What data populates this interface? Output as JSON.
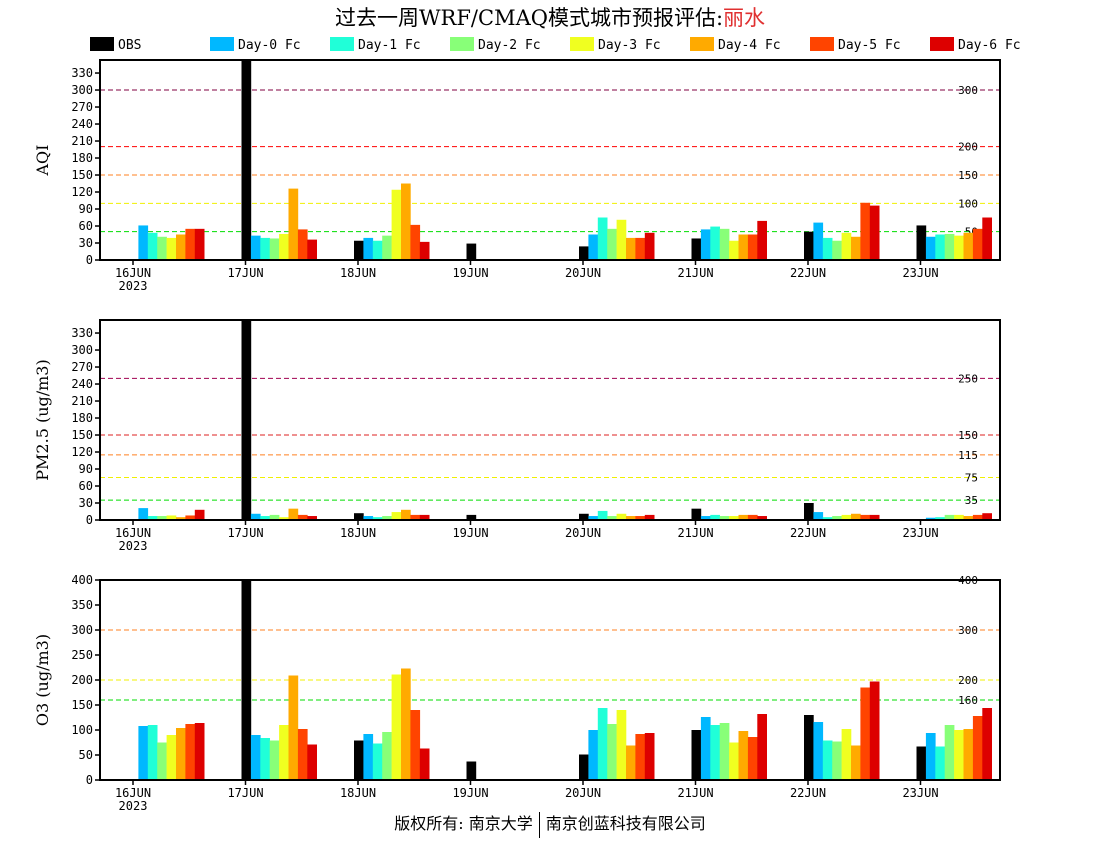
{
  "title": {
    "text": "过去一周WRF/CMAQ模式城市预报评估:",
    "city": "丽水"
  },
  "footer": {
    "left": "版权所有: 南京大学",
    "right": "南京创蓝科技有限公司"
  },
  "legend": [
    {
      "name": "OBS",
      "color": "#000000"
    },
    {
      "name": "Day-0 Fc",
      "color": "#00b8ff"
    },
    {
      "name": "Day-1 Fc",
      "color": "#20ffd8"
    },
    {
      "name": "Day-2 Fc",
      "color": "#88ff78"
    },
    {
      "name": "Day-3 Fc",
      "color": "#f0ff20"
    },
    {
      "name": "Day-4 Fc",
      "color": "#ffaa00"
    },
    {
      "name": "Day-5 Fc",
      "color": "#ff4400"
    },
    {
      "name": "Day-6 Fc",
      "color": "#dd0000"
    }
  ],
  "chart_data": [
    {
      "type": "bar",
      "ylabel": "AQI",
      "ylim": [
        0,
        353
      ],
      "yticks": [
        0,
        30,
        60,
        90,
        120,
        150,
        180,
        210,
        240,
        270,
        300,
        330
      ],
      "categories": [
        "16JUN\n2023",
        "17JUN",
        "18JUN",
        "19JUN",
        "20JUN",
        "21JUN",
        "22JUN",
        "23JUN"
      ],
      "reference_lines": [
        {
          "value": 300,
          "label": "300",
          "color": "#800040"
        },
        {
          "value": 200,
          "label": "200",
          "color": "#ff0000"
        },
        {
          "value": 150,
          "label": "150",
          "color": "#ff8020"
        },
        {
          "value": 100,
          "label": "100",
          "color": "#f0f000"
        },
        {
          "value": 50,
          "label": "50",
          "color": "#00dd00"
        }
      ],
      "series": [
        {
          "name": "OBS",
          "values": [
            null,
            360,
            34,
            29,
            24,
            38,
            50,
            61
          ]
        },
        {
          "name": "Day-0 Fc",
          "values": [
            61,
            43,
            39,
            null,
            45,
            54,
            66,
            41
          ]
        },
        {
          "name": "Day-1 Fc",
          "values": [
            48,
            39,
            34,
            null,
            75,
            59,
            39,
            45
          ]
        },
        {
          "name": "Day-2 Fc",
          "values": [
            41,
            38,
            43,
            null,
            55,
            55,
            34,
            46
          ]
        },
        {
          "name": "Day-3 Fc",
          "values": [
            39,
            46,
            124,
            null,
            71,
            34,
            48,
            43
          ]
        },
        {
          "name": "Day-4 Fc",
          "values": [
            45,
            126,
            135,
            null,
            39,
            45,
            41,
            48
          ]
        },
        {
          "name": "Day-5 Fc",
          "values": [
            55,
            54,
            62,
            null,
            39,
            45,
            101,
            55
          ]
        },
        {
          "name": "Day-6 Fc",
          "values": [
            55,
            36,
            32,
            null,
            48,
            69,
            96,
            75
          ]
        }
      ]
    },
    {
      "type": "bar",
      "ylabel": "PM2.5 (ug/m3)",
      "ylim": [
        0,
        353
      ],
      "yticks": [
        0,
        30,
        60,
        90,
        120,
        150,
        180,
        210,
        240,
        270,
        300,
        330
      ],
      "categories": [
        "16JUN\n2023",
        "17JUN",
        "18JUN",
        "19JUN",
        "20JUN",
        "21JUN",
        "22JUN",
        "23JUN"
      ],
      "reference_lines": [
        {
          "value": 250,
          "label": "250",
          "color": "#a00050"
        },
        {
          "value": 150,
          "label": "150",
          "color": "#dd2020"
        },
        {
          "value": 115,
          "label": "115",
          "color": "#ff8020"
        },
        {
          "value": 75,
          "label": "75",
          "color": "#f0f000"
        },
        {
          "value": 35,
          "label": "35",
          "color": "#00dd00"
        }
      ],
      "series": [
        {
          "name": "OBS",
          "values": [
            null,
            360,
            12,
            9,
            11,
            20,
            30,
            null
          ]
        },
        {
          "name": "Day-0 Fc",
          "values": [
            21,
            11,
            7,
            null,
            7,
            7,
            14,
            4
          ]
        },
        {
          "name": "Day-1 Fc",
          "values": [
            7,
            7,
            5,
            null,
            16,
            9,
            5,
            5
          ]
        },
        {
          "name": "Day-2 Fc",
          "values": [
            7,
            9,
            7,
            null,
            7,
            7,
            7,
            9
          ]
        },
        {
          "name": "Day-3 Fc",
          "values": [
            8,
            5,
            14,
            null,
            11,
            7,
            9,
            9
          ]
        },
        {
          "name": "Day-4 Fc",
          "values": [
            5,
            20,
            18,
            null,
            7,
            9,
            11,
            7
          ]
        },
        {
          "name": "Day-5 Fc",
          "values": [
            8,
            9,
            9,
            null,
            7,
            9,
            9,
            9
          ]
        },
        {
          "name": "Day-6 Fc",
          "values": [
            18,
            7,
            9,
            null,
            9,
            7,
            9,
            12
          ]
        }
      ]
    },
    {
      "type": "bar",
      "ylabel": "O3 (ug/m3)",
      "ylim": [
        0,
        400
      ],
      "yticks": [
        0,
        50,
        100,
        150,
        200,
        250,
        300,
        350,
        400
      ],
      "categories": [
        "16JUN\n2023",
        "17JUN",
        "18JUN",
        "19JUN",
        "20JUN",
        "21JUN",
        "22JUN",
        "23JUN"
      ],
      "reference_lines": [
        {
          "value": 400,
          "label": "400",
          "color": "#ff0000"
        },
        {
          "value": 300,
          "label": "300",
          "color": "#ff8020"
        },
        {
          "value": 200,
          "label": "200",
          "color": "#f0f000"
        },
        {
          "value": 160,
          "label": "160",
          "color": "#00dd00"
        }
      ],
      "series": [
        {
          "name": "OBS",
          "values": [
            null,
            420,
            79,
            37,
            51,
            100,
            130,
            67
          ]
        },
        {
          "name": "Day-0 Fc",
          "values": [
            108,
            90,
            92,
            null,
            100,
            126,
            116,
            94
          ]
        },
        {
          "name": "Day-1 Fc",
          "values": [
            110,
            84,
            73,
            null,
            144,
            110,
            79,
            67
          ]
        },
        {
          "name": "Day-2 Fc",
          "values": [
            75,
            79,
            96,
            null,
            112,
            114,
            77,
            110
          ]
        },
        {
          "name": "Day-3 Fc",
          "values": [
            90,
            110,
            211,
            null,
            140,
            75,
            102,
            100
          ]
        },
        {
          "name": "Day-4 Fc",
          "values": [
            104,
            209,
            223,
            null,
            69,
            98,
            69,
            102
          ]
        },
        {
          "name": "Day-5 Fc",
          "values": [
            112,
            102,
            140,
            null,
            92,
            86,
            185,
            128
          ]
        },
        {
          "name": "Day-6 Fc",
          "values": [
            114,
            71,
            63,
            null,
            94,
            132,
            197,
            144
          ]
        }
      ]
    }
  ]
}
